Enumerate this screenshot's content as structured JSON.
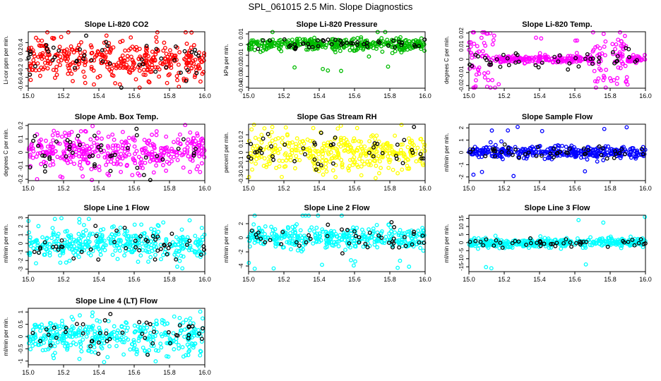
{
  "page_title": "SPL_061015  2.5 Min. Slope Diagnostics",
  "chart_data": [
    {
      "type": "scatter",
      "title": "Slope Li-820 CO2",
      "ylabel": "Li-cor ppm per min.",
      "xlim": [
        15.0,
        16.0
      ],
      "ylim": [
        -0.65,
        0.65
      ],
      "yticks": [
        -0.6,
        -0.4,
        -0.2,
        0.0,
        0.2,
        0.4
      ],
      "xticks": [
        15.0,
        15.2,
        15.4,
        15.6,
        15.8,
        16.0
      ],
      "color": "#ff0000",
      "spread": 0.22,
      "outlier": 0.62,
      "envelope": "flat",
      "n": 380,
      "nblack": 45
    },
    {
      "type": "scatter",
      "title": "Slope Li-820 Pressure",
      "ylabel": "kPa per min.",
      "xlim": [
        15.0,
        16.0
      ],
      "ylim": [
        -0.041,
        0.012
      ],
      "yticks": [
        -0.04,
        -0.03,
        -0.02,
        -0.01,
        0.0,
        0.01
      ],
      "xticks": [
        15.0,
        15.2,
        15.4,
        15.6,
        15.8,
        16.0
      ],
      "color": "#00bb00",
      "spread": 0.0028,
      "outlier": 0.025,
      "envelope": "flat",
      "n": 380,
      "nblack": 45
    },
    {
      "type": "scatter",
      "title": "Slope Li-820 Temp.",
      "ylabel": "degrees C per min.",
      "xlim": [
        15.0,
        16.0
      ],
      "ylim": [
        -0.022,
        0.021
      ],
      "yticks": [
        -0.02,
        -0.01,
        0.0,
        0.01,
        0.02
      ],
      "xticks": [
        15.0,
        15.2,
        15.4,
        15.6,
        15.8,
        16.0
      ],
      "color": "#ff00ff",
      "spread": 0.0055,
      "outlier": 0.019,
      "envelope": "edges",
      "n": 380,
      "nblack": 45
    },
    {
      "type": "scatter",
      "title": "Slope Amb. Box Temp.",
      "ylabel": "degrees C per min.",
      "xlim": [
        15.0,
        16.0
      ],
      "ylim": [
        -0.21,
        0.21
      ],
      "yticks": [
        -0.2,
        -0.1,
        0.0,
        0.1,
        0.2
      ],
      "xticks": [
        15.0,
        15.2,
        15.4,
        15.6,
        15.8,
        16.0
      ],
      "color": "#ff00ff",
      "spread": 0.07,
      "outlier": 0.2,
      "envelope": "flat",
      "n": 380,
      "nblack": 45
    },
    {
      "type": "scatter",
      "title": "Slope Gas Stream RH",
      "ylabel": "percent per min.",
      "xlim": [
        15.0,
        16.0
      ],
      "ylim": [
        -0.32,
        0.32
      ],
      "yticks": [
        -0.3,
        -0.2,
        -0.1,
        0.0,
        0.1,
        0.2
      ],
      "xticks": [
        15.0,
        15.2,
        15.4,
        15.6,
        15.8,
        16.0
      ],
      "color": "#ffff00",
      "spread": 0.11,
      "outlier": 0.3,
      "envelope": "flat",
      "n": 380,
      "nblack": 45
    },
    {
      "type": "scatter",
      "title": "Slope Sample Flow",
      "ylabel": "ml/min per min.",
      "xlim": [
        15.0,
        16.0
      ],
      "ylim": [
        -2.3,
        2.3
      ],
      "yticks": [
        -2,
        -1,
        0,
        1,
        2
      ],
      "xticks": [
        15.0,
        15.2,
        15.4,
        15.6,
        15.8,
        16.0
      ],
      "color": "#0000ff",
      "spread": 0.25,
      "outlier": 2.1,
      "envelope": "flat",
      "n": 380,
      "nblack": 45
    },
    {
      "type": "scatter",
      "title": "Slope Line 1 Flow",
      "ylabel": "ml/min per min.",
      "xlim": [
        15.0,
        16.0
      ],
      "ylim": [
        -3.3,
        3.3
      ],
      "yticks": [
        -3,
        -2,
        -1,
        0,
        1,
        2,
        3
      ],
      "xticks": [
        15.0,
        15.2,
        15.4,
        15.6,
        15.8,
        16.0
      ],
      "color": "#00ffff",
      "spread": 0.9,
      "outlier": 3.0,
      "envelope": "flat",
      "n": 380,
      "nblack": 45
    },
    {
      "type": "scatter",
      "title": "Slope Line 2 Flow",
      "ylabel": "ml/min per min.",
      "xlim": [
        15.0,
        16.0
      ],
      "ylim": [
        -4.8,
        3.2
      ],
      "yticks": [
        -4,
        -2,
        0,
        2
      ],
      "xticks": [
        15.0,
        15.2,
        15.4,
        15.6,
        15.8,
        16.0
      ],
      "color": "#00ffff",
      "spread": 0.8,
      "outlier": 4.4,
      "envelope": "flat",
      "n": 380,
      "nblack": 45
    },
    {
      "type": "scatter",
      "title": "Slope Line 3 Flow",
      "ylabel": "ml/min per min.",
      "xlim": [
        15.0,
        16.0
      ],
      "ylim": [
        -18,
        17
      ],
      "yticks": [
        -15,
        -10,
        -5,
        0,
        5,
        10,
        15
      ],
      "xticks": [
        15.0,
        15.2,
        15.4,
        15.6,
        15.8,
        16.0
      ],
      "color": "#00ffff",
      "spread": 1.5,
      "outlier": 16,
      "envelope": "flat",
      "n": 380,
      "nblack": 45
    },
    {
      "type": "scatter",
      "title": "Slope Line 4 (LT) Flow",
      "ylabel": "ml/min per min.",
      "xlim": [
        15.0,
        16.0
      ],
      "ylim": [
        -1.15,
        1.15
      ],
      "yticks": [
        -1.0,
        -0.5,
        0.0,
        0.5,
        1.0
      ],
      "xticks": [
        15.0,
        15.2,
        15.4,
        15.6,
        15.8,
        16.0
      ],
      "color": "#00ffff",
      "spread": 0.35,
      "outlier": 1.05,
      "envelope": "flat",
      "n": 380,
      "nblack": 45
    }
  ]
}
